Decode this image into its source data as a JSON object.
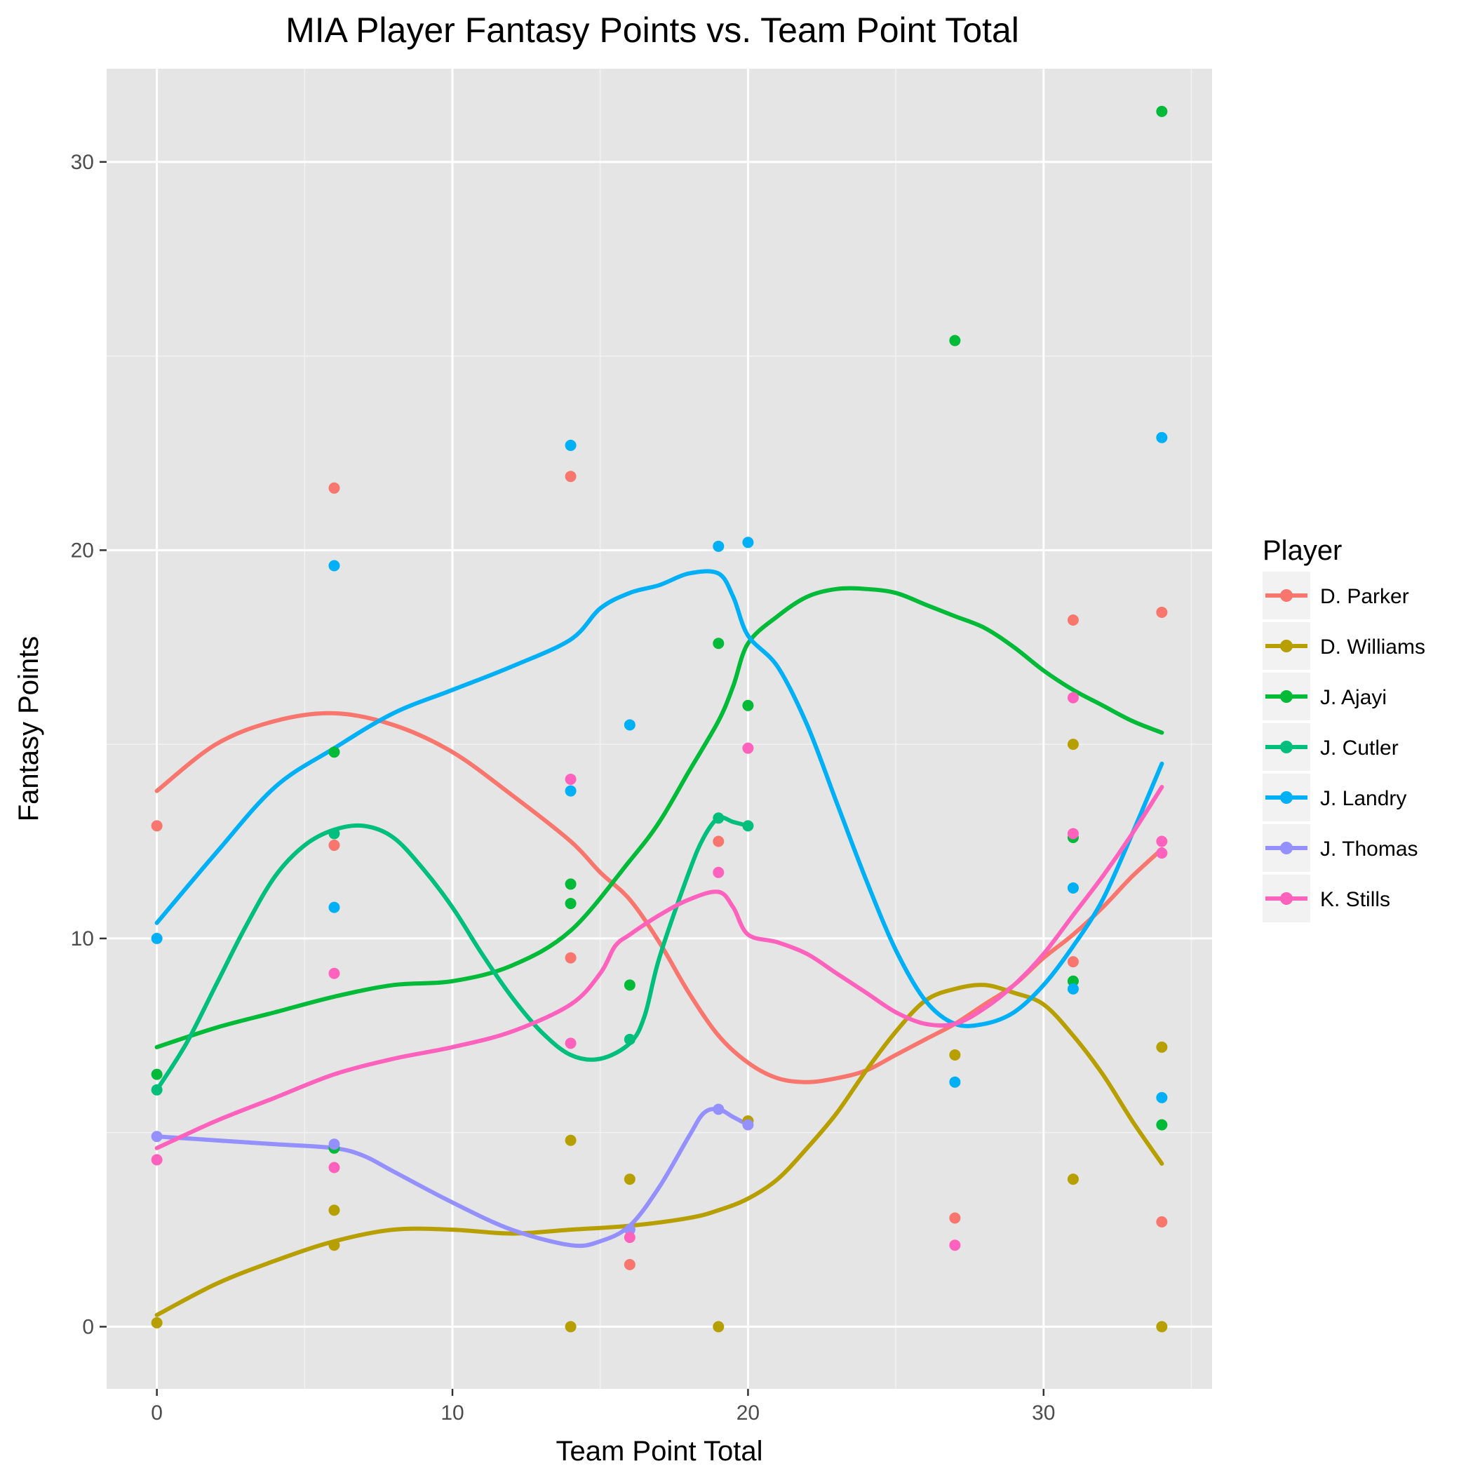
{
  "chart_data": {
    "type": "scatter",
    "title": "MIA Player Fantasy Points vs. Team Point Total",
    "xlabel": "Team Point Total",
    "ylabel": "Fantasy Points",
    "xlim": [
      -1.7,
      35.7
    ],
    "ylim": [
      -1.6,
      32.4
    ],
    "x_ticks": [
      0,
      10,
      20,
      30
    ],
    "y_ticks": [
      0,
      10,
      20,
      30
    ],
    "grid": true,
    "legend": {
      "title": "Player",
      "position": "right"
    },
    "series": [
      {
        "name": "D. Parker",
        "color": "#F8766D",
        "points": [
          [
            0,
            12.9
          ],
          [
            6,
            12.4
          ],
          [
            6,
            21.6
          ],
          [
            14,
            21.9
          ],
          [
            14,
            9.5
          ],
          [
            16,
            1.6
          ],
          [
            19,
            12.5
          ],
          [
            27,
            2.8
          ],
          [
            31,
            9.4
          ],
          [
            31,
            18.2
          ],
          [
            34,
            2.7
          ],
          [
            34,
            18.4
          ]
        ],
        "smooth": [
          [
            0,
            13.8
          ],
          [
            2,
            15.0
          ],
          [
            4,
            15.6
          ],
          [
            6,
            15.8
          ],
          [
            8,
            15.5
          ],
          [
            10,
            14.8
          ],
          [
            12,
            13.7
          ],
          [
            14,
            12.5
          ],
          [
            15,
            11.7
          ],
          [
            16,
            11.0
          ],
          [
            17,
            9.9
          ],
          [
            18,
            8.6
          ],
          [
            19,
            7.5
          ],
          [
            20,
            6.8
          ],
          [
            21,
            6.4
          ],
          [
            22,
            6.3
          ],
          [
            23,
            6.4
          ],
          [
            24,
            6.6
          ],
          [
            25,
            7.0
          ],
          [
            26,
            7.4
          ],
          [
            27,
            7.8
          ],
          [
            28,
            8.3
          ],
          [
            29,
            8.8
          ],
          [
            30,
            9.5
          ],
          [
            31,
            10.1
          ],
          [
            32,
            10.8
          ],
          [
            33,
            11.6
          ],
          [
            34,
            12.3
          ]
        ]
      },
      {
        "name": "D. Williams",
        "color": "#B79F00",
        "points": [
          [
            0,
            0.1
          ],
          [
            6,
            3.0
          ],
          [
            6,
            2.1
          ],
          [
            14,
            4.8
          ],
          [
            14,
            0.0
          ],
          [
            16,
            3.8
          ],
          [
            19,
            0.0
          ],
          [
            20,
            5.3
          ],
          [
            27,
            7.0
          ],
          [
            31,
            15.0
          ],
          [
            31,
            3.8
          ],
          [
            34,
            7.2
          ],
          [
            34,
            0.0
          ]
        ],
        "smooth": [
          [
            0,
            0.3
          ],
          [
            2,
            1.1
          ],
          [
            4,
            1.7
          ],
          [
            6,
            2.2
          ],
          [
            8,
            2.5
          ],
          [
            10,
            2.5
          ],
          [
            12,
            2.4
          ],
          [
            14,
            2.5
          ],
          [
            16,
            2.6
          ],
          [
            18,
            2.8
          ],
          [
            19,
            3.0
          ],
          [
            20,
            3.3
          ],
          [
            21,
            3.8
          ],
          [
            22,
            4.6
          ],
          [
            23,
            5.5
          ],
          [
            24,
            6.6
          ],
          [
            25,
            7.6
          ],
          [
            26,
            8.4
          ],
          [
            27,
            8.7
          ],
          [
            28,
            8.8
          ],
          [
            29,
            8.6
          ],
          [
            30,
            8.3
          ],
          [
            31,
            7.5
          ],
          [
            32,
            6.5
          ],
          [
            33,
            5.3
          ],
          [
            34,
            4.2
          ]
        ]
      },
      {
        "name": "J. Ajayi",
        "color": "#00BA38",
        "points": [
          [
            0,
            6.5
          ],
          [
            6,
            14.8
          ],
          [
            6,
            4.6
          ],
          [
            14,
            11.4
          ],
          [
            14,
            10.9
          ],
          [
            16,
            8.8
          ],
          [
            19,
            17.6
          ],
          [
            20,
            16.0
          ],
          [
            27,
            25.4
          ],
          [
            31,
            12.6
          ],
          [
            31,
            8.9
          ],
          [
            34,
            31.3
          ],
          [
            34,
            5.2
          ]
        ],
        "smooth": [
          [
            0,
            7.2
          ],
          [
            2,
            7.7
          ],
          [
            4,
            8.1
          ],
          [
            6,
            8.5
          ],
          [
            8,
            8.8
          ],
          [
            10,
            8.9
          ],
          [
            12,
            9.3
          ],
          [
            14,
            10.2
          ],
          [
            16,
            12.0
          ],
          [
            17,
            13.0
          ],
          [
            18,
            14.3
          ],
          [
            19,
            15.6
          ],
          [
            19.5,
            16.5
          ],
          [
            20,
            17.6
          ],
          [
            21,
            18.3
          ],
          [
            22,
            18.8
          ],
          [
            23,
            19.0
          ],
          [
            24,
            19.0
          ],
          [
            25,
            18.9
          ],
          [
            26,
            18.6
          ],
          [
            27,
            18.3
          ],
          [
            28,
            18.0
          ],
          [
            29,
            17.5
          ],
          [
            30,
            16.9
          ],
          [
            31,
            16.4
          ],
          [
            32,
            16.0
          ],
          [
            33,
            15.6
          ],
          [
            34,
            15.3
          ]
        ]
      },
      {
        "name": "J. Cutler",
        "color": "#00BF7D",
        "points": [
          [
            0,
            6.1
          ],
          [
            6,
            12.7
          ],
          [
            16,
            7.4
          ],
          [
            19,
            13.1
          ],
          [
            20,
            12.9
          ]
        ],
        "smooth": [
          [
            0,
            6.1
          ],
          [
            1,
            7.3
          ],
          [
            2,
            8.8
          ],
          [
            3,
            10.3
          ],
          [
            4,
            11.6
          ],
          [
            5,
            12.4
          ],
          [
            6,
            12.8
          ],
          [
            7,
            12.9
          ],
          [
            8,
            12.6
          ],
          [
            9,
            11.8
          ],
          [
            10,
            10.8
          ],
          [
            11,
            9.6
          ],
          [
            12,
            8.5
          ],
          [
            13,
            7.6
          ],
          [
            14,
            7.0
          ],
          [
            15,
            6.9
          ],
          [
            16,
            7.3
          ],
          [
            16.5,
            8.0
          ],
          [
            17,
            9.5
          ],
          [
            18,
            11.7
          ],
          [
            18.5,
            12.6
          ],
          [
            19,
            13.1
          ],
          [
            19.5,
            13.0
          ],
          [
            20,
            12.9
          ]
        ]
      },
      {
        "name": "J. Landry",
        "color": "#00B0F6",
        "points": [
          [
            0,
            10.0
          ],
          [
            6,
            19.6
          ],
          [
            6,
            10.8
          ],
          [
            14,
            22.7
          ],
          [
            14,
            13.8
          ],
          [
            16,
            15.5
          ],
          [
            19,
            20.1
          ],
          [
            20,
            20.2
          ],
          [
            27,
            6.3
          ],
          [
            31,
            11.3
          ],
          [
            31,
            8.7
          ],
          [
            34,
            22.9
          ],
          [
            34,
            5.9
          ]
        ],
        "smooth": [
          [
            0,
            10.4
          ],
          [
            2,
            12.2
          ],
          [
            4,
            13.9
          ],
          [
            6,
            14.9
          ],
          [
            8,
            15.8
          ],
          [
            10,
            16.4
          ],
          [
            12,
            17.0
          ],
          [
            14,
            17.7
          ],
          [
            15,
            18.5
          ],
          [
            16,
            18.9
          ],
          [
            17,
            19.1
          ],
          [
            18,
            19.4
          ],
          [
            19,
            19.4
          ],
          [
            19.5,
            18.8
          ],
          [
            20,
            17.8
          ],
          [
            21,
            17.0
          ],
          [
            22,
            15.5
          ],
          [
            23,
            13.5
          ],
          [
            24,
            11.5
          ],
          [
            25,
            9.7
          ],
          [
            26,
            8.4
          ],
          [
            27,
            7.8
          ],
          [
            28,
            7.8
          ],
          [
            29,
            8.1
          ],
          [
            30,
            8.8
          ],
          [
            31,
            9.8
          ],
          [
            32,
            11.0
          ],
          [
            33,
            12.7
          ],
          [
            34,
            14.5
          ]
        ]
      },
      {
        "name": "J. Thomas",
        "color": "#9590FF",
        "points": [
          [
            0,
            4.9
          ],
          [
            6,
            4.7
          ],
          [
            16,
            2.5
          ],
          [
            19,
            5.6
          ],
          [
            20,
            5.2
          ]
        ],
        "smooth": [
          [
            0,
            4.9
          ],
          [
            2,
            4.8
          ],
          [
            4,
            4.7
          ],
          [
            6,
            4.6
          ],
          [
            7,
            4.4
          ],
          [
            8,
            4.0
          ],
          [
            10,
            3.2
          ],
          [
            12,
            2.5
          ],
          [
            14,
            2.1
          ],
          [
            15,
            2.2
          ],
          [
            16,
            2.6
          ],
          [
            17,
            3.6
          ],
          [
            18,
            4.9
          ],
          [
            18.5,
            5.5
          ],
          [
            19,
            5.6
          ],
          [
            19.5,
            5.4
          ],
          [
            20,
            5.2
          ]
        ]
      },
      {
        "name": "K. Stills",
        "color": "#FF62BC",
        "points": [
          [
            0,
            4.3
          ],
          [
            6,
            4.1
          ],
          [
            6,
            9.1
          ],
          [
            14,
            14.1
          ],
          [
            14,
            7.3
          ],
          [
            16,
            2.3
          ],
          [
            19,
            11.7
          ],
          [
            20,
            14.9
          ],
          [
            27,
            2.1
          ],
          [
            31,
            16.2
          ],
          [
            31,
            12.7
          ],
          [
            34,
            12.2
          ],
          [
            34,
            12.5
          ]
        ],
        "smooth": [
          [
            0,
            4.6
          ],
          [
            2,
            5.3
          ],
          [
            4,
            5.9
          ],
          [
            6,
            6.5
          ],
          [
            8,
            6.9
          ],
          [
            10,
            7.2
          ],
          [
            12,
            7.6
          ],
          [
            14,
            8.3
          ],
          [
            15,
            9.1
          ],
          [
            15.5,
            9.8
          ],
          [
            16,
            10.1
          ],
          [
            17,
            10.6
          ],
          [
            18,
            11.0
          ],
          [
            19,
            11.2
          ],
          [
            19.5,
            10.8
          ],
          [
            20,
            10.1
          ],
          [
            21,
            9.9
          ],
          [
            22,
            9.6
          ],
          [
            23,
            9.1
          ],
          [
            24,
            8.6
          ],
          [
            25,
            8.1
          ],
          [
            26,
            7.8
          ],
          [
            27,
            7.8
          ],
          [
            28,
            8.2
          ],
          [
            29,
            8.8
          ],
          [
            30,
            9.6
          ],
          [
            31,
            10.6
          ],
          [
            32,
            11.6
          ],
          [
            33,
            12.7
          ],
          [
            34,
            13.9
          ]
        ]
      }
    ]
  }
}
